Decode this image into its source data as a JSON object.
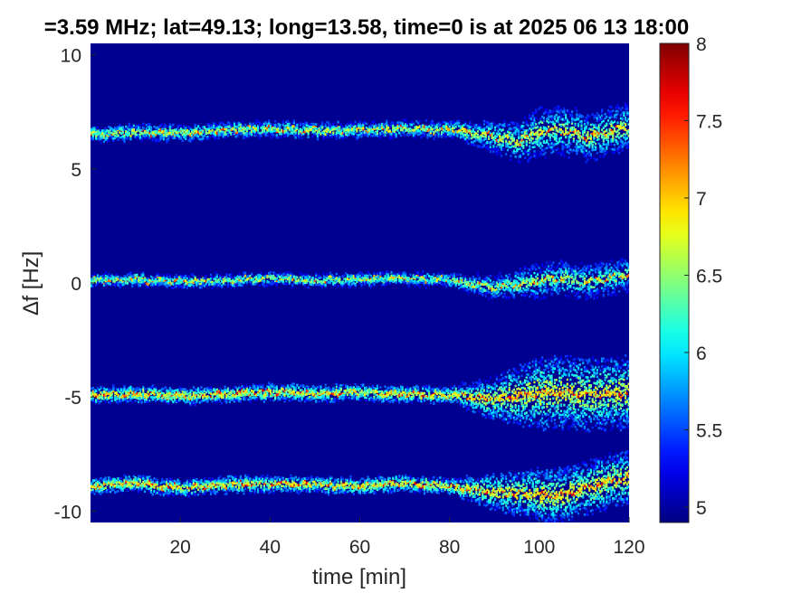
{
  "chart_data": {
    "type": "heatmap",
    "title": "=3.59 MHz;  lat=49.13; long=13.58, time=0 is at 2025 06 13 18:00",
    "xlabel": "time [min]",
    "ylabel": "∆f [Hz]",
    "xlim": [
      0,
      120
    ],
    "ylim": [
      -10.5,
      10.5
    ],
    "x_ticks": [
      20,
      40,
      60,
      80,
      100,
      120
    ],
    "x_tick_labels": [
      "20",
      "40",
      "60",
      "80",
      "100",
      "120"
    ],
    "y_ticks": [
      -10,
      -5,
      0,
      5,
      10
    ],
    "y_tick_labels": [
      "-10",
      "-5",
      "0",
      "5",
      "10"
    ],
    "colorbar": {
      "colormap": "jet",
      "clim": [
        4.9,
        8
      ],
      "ticks": [
        5,
        5.5,
        6,
        6.5,
        7,
        7.5,
        8
      ],
      "tick_labels": [
        "5",
        "5.5",
        "6",
        "6.5",
        "7",
        "7.5",
        "8"
      ]
    },
    "background_value": 4.95,
    "traces": [
      {
        "name_hidden": true,
        "points": [
          [
            0,
            6.5
          ],
          [
            10,
            6.6
          ],
          [
            20,
            6.55
          ],
          [
            30,
            6.7
          ],
          [
            40,
            6.75
          ],
          [
            50,
            6.65
          ],
          [
            60,
            6.7
          ],
          [
            70,
            6.75
          ],
          [
            80,
            6.7
          ],
          [
            90,
            6.4
          ],
          [
            95,
            6.2
          ],
          [
            100,
            6.6
          ],
          [
            105,
            6.7
          ],
          [
            110,
            6.4
          ],
          [
            115,
            6.6
          ],
          [
            120,
            6.8
          ]
        ],
        "peak": 7.6,
        "spread_before_80": 0.35,
        "spread_after_80": 1.1
      },
      {
        "name_hidden": true,
        "points": [
          [
            0,
            0.1
          ],
          [
            10,
            0.15
          ],
          [
            20,
            0.05
          ],
          [
            30,
            0.1
          ],
          [
            40,
            0.2
          ],
          [
            50,
            0.1
          ],
          [
            60,
            0.15
          ],
          [
            70,
            0.2
          ],
          [
            80,
            0.1
          ],
          [
            90,
            -0.2
          ],
          [
            100,
            0.1
          ],
          [
            105,
            0.2
          ],
          [
            110,
            0.0
          ],
          [
            115,
            0.2
          ],
          [
            120,
            0.4
          ]
        ],
        "peak": 7.5,
        "spread_before_80": 0.3,
        "spread_after_80": 0.8
      },
      {
        "name_hidden": true,
        "points": [
          [
            0,
            -4.9
          ],
          [
            10,
            -4.85
          ],
          [
            20,
            -4.95
          ],
          [
            30,
            -4.9
          ],
          [
            40,
            -4.8
          ],
          [
            50,
            -4.85
          ],
          [
            60,
            -4.8
          ],
          [
            70,
            -4.9
          ],
          [
            80,
            -4.9
          ],
          [
            90,
            -5.1
          ],
          [
            100,
            -4.8
          ],
          [
            105,
            -4.8
          ],
          [
            110,
            -4.9
          ],
          [
            115,
            -4.85
          ],
          [
            120,
            -4.8
          ]
        ],
        "peak": 7.8,
        "spread_before_80": 0.35,
        "spread_after_80": 1.6
      },
      {
        "name_hidden": true,
        "points": [
          [
            0,
            -8.9
          ],
          [
            10,
            -8.8
          ],
          [
            20,
            -9.0
          ],
          [
            30,
            -8.85
          ],
          [
            40,
            -8.8
          ],
          [
            50,
            -8.85
          ],
          [
            60,
            -8.9
          ],
          [
            70,
            -8.8
          ],
          [
            80,
            -8.9
          ],
          [
            90,
            -9.2
          ],
          [
            100,
            -9.3
          ],
          [
            105,
            -9.3
          ],
          [
            110,
            -9.0
          ],
          [
            115,
            -8.7
          ],
          [
            120,
            -8.5
          ]
        ],
        "peak": 7.8,
        "spread_before_80": 0.35,
        "spread_after_80": 1.2
      }
    ]
  }
}
